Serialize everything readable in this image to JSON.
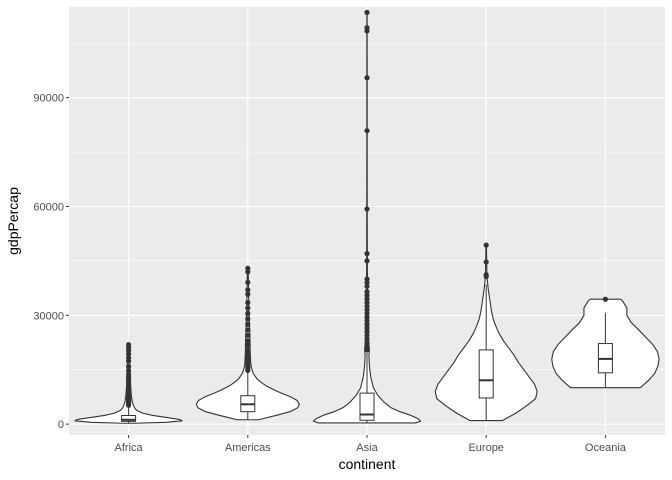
{
  "chart_data": {
    "type": "violin",
    "title": "",
    "xlabel": "continent",
    "ylabel": "gdpPercap",
    "ylim": [
      -3000,
      115000
    ],
    "y_ticks": [
      0,
      30000,
      60000,
      90000
    ],
    "y_tick_labels": [
      "0",
      "30000",
      "60000",
      "90000"
    ],
    "categories": [
      "Africa",
      "Americas",
      "Asia",
      "Europe",
      "Oceania"
    ],
    "grid": true,
    "legend": "none",
    "colors": {
      "panel": "#ebebeb",
      "grid_major": "#ffffff",
      "violin_fill": "#ffffff",
      "outline": "#333333",
      "outlier": "#333333",
      "tick": "#333333"
    },
    "groups": [
      {
        "name": "Africa",
        "box": {
          "whisker_low": 241,
          "q1": 762,
          "median": 1192,
          "q3": 2377,
          "whisker_high": 4800
        },
        "outliers": [
          5200,
          5500,
          5900,
          6200,
          6600,
          7000,
          7400,
          7800,
          8200,
          8700,
          9300,
          9900,
          10600,
          11400,
          12200,
          12900,
          13700,
          14700,
          15900,
          17400,
          18300,
          19300,
          20300,
          21200,
          21900
        ],
        "violin": [
          [
            241,
            0.1
          ],
          [
            500,
            0.7
          ],
          [
            900,
            1.0
          ],
          [
            1300,
            0.95
          ],
          [
            1800,
            0.72
          ],
          [
            2400,
            0.45
          ],
          [
            3000,
            0.27
          ],
          [
            3800,
            0.15
          ],
          [
            4500,
            0.11
          ],
          [
            6000,
            0.07
          ],
          [
            8000,
            0.05
          ],
          [
            10000,
            0.04
          ],
          [
            13000,
            0.03
          ],
          [
            16000,
            0.025
          ],
          [
            19000,
            0.02
          ],
          [
            21951,
            0.015
          ]
        ]
      },
      {
        "name": "Americas",
        "box": {
          "whisker_low": 1202,
          "q1": 3428,
          "median": 5466,
          "q3": 7830,
          "whisker_high": 14300
        },
        "outliers": [
          14800,
          15300,
          15800,
          16300,
          16800,
          17300,
          17800,
          18300,
          18800,
          19500,
          20500,
          21800,
          23000,
          24500,
          26000,
          27500,
          29000,
          30500,
          32000,
          33500,
          35800,
          37000,
          39100,
          42000,
          42952
        ],
        "violin": [
          [
            1202,
            0.2
          ],
          [
            2500,
            0.55
          ],
          [
            3500,
            0.8
          ],
          [
            4500,
            0.93
          ],
          [
            5500,
            0.96
          ],
          [
            6500,
            0.92
          ],
          [
            7500,
            0.8
          ],
          [
            8500,
            0.63
          ],
          [
            9500,
            0.48
          ],
          [
            10500,
            0.35
          ],
          [
            11500,
            0.25
          ],
          [
            12500,
            0.17
          ],
          [
            14000,
            0.1
          ],
          [
            16000,
            0.06
          ],
          [
            18000,
            0.05
          ],
          [
            20000,
            0.045
          ],
          [
            24000,
            0.04
          ],
          [
            28000,
            0.03
          ],
          [
            32000,
            0.02
          ],
          [
            36000,
            0.015
          ],
          [
            40000,
            0.01
          ],
          [
            42952,
            0.008
          ]
        ]
      },
      {
        "name": "Asia",
        "box": {
          "whisker_low": 331,
          "q1": 1057,
          "median": 2647,
          "q3": 8549,
          "whisker_high": 19800
        },
        "outliers": [
          20500,
          21500,
          22500,
          23500,
          24500,
          25500,
          26500,
          27500,
          28500,
          29500,
          30500,
          31500,
          32500,
          33500,
          34500,
          35500,
          36500,
          38000,
          39000,
          40000,
          45000,
          47000,
          59300,
          80900,
          95500,
          108400,
          109300,
          113523
        ],
        "violin": [
          [
            331,
            0.9
          ],
          [
            800,
            1.0
          ],
          [
            1500,
            0.95
          ],
          [
            2500,
            0.8
          ],
          [
            3500,
            0.6
          ],
          [
            4500,
            0.45
          ],
          [
            6000,
            0.32
          ],
          [
            8000,
            0.2
          ],
          [
            10000,
            0.12
          ],
          [
            13000,
            0.07
          ],
          [
            16000,
            0.045
          ],
          [
            19000,
            0.035
          ],
          [
            20500,
            0.045
          ],
          [
            22000,
            0.035
          ],
          [
            26000,
            0.02
          ],
          [
            30000,
            0.015
          ],
          [
            36000,
            0.01
          ],
          [
            45000,
            0.006
          ],
          [
            60000,
            0.004
          ],
          [
            80000,
            0.003
          ],
          [
            100000,
            0.003
          ],
          [
            113523,
            0.002
          ]
        ]
      },
      {
        "name": "Europe",
        "box": {
          "whisker_low": 974,
          "q1": 7213,
          "median": 12082,
          "q3": 20461,
          "whisker_high": 38500
        },
        "outliers": [
          40700,
          41200,
          44700,
          49357
        ],
        "violin": [
          [
            974,
            0.3
          ],
          [
            3000,
            0.55
          ],
          [
            5000,
            0.75
          ],
          [
            7000,
            0.92
          ],
          [
            9000,
            0.95
          ],
          [
            11000,
            0.9
          ],
          [
            13000,
            0.8
          ],
          [
            15000,
            0.7
          ],
          [
            17000,
            0.6
          ],
          [
            19000,
            0.52
          ],
          [
            21000,
            0.42
          ],
          [
            23000,
            0.32
          ],
          [
            25000,
            0.24
          ],
          [
            27000,
            0.18
          ],
          [
            29000,
            0.13
          ],
          [
            31000,
            0.1
          ],
          [
            33000,
            0.08
          ],
          [
            35000,
            0.06
          ],
          [
            37000,
            0.04
          ],
          [
            39000,
            0.025
          ],
          [
            41000,
            0.015
          ],
          [
            45000,
            0.008
          ],
          [
            49357,
            0.005
          ]
        ]
      },
      {
        "name": "Oceania",
        "box": {
          "whisker_low": 10040,
          "q1": 14142,
          "median": 17983,
          "q3": 22214,
          "whisker_high": 30700
        },
        "outliers": [
          34435
        ],
        "violin": [
          [
            10040,
            0.65
          ],
          [
            12000,
            0.8
          ],
          [
            14000,
            0.92
          ],
          [
            16000,
            0.98
          ],
          [
            18000,
            1.0
          ],
          [
            20000,
            0.97
          ],
          [
            22000,
            0.88
          ],
          [
            24000,
            0.75
          ],
          [
            26000,
            0.62
          ],
          [
            28000,
            0.48
          ],
          [
            30000,
            0.4
          ],
          [
            32000,
            0.4
          ],
          [
            34000,
            0.32
          ],
          [
            34435,
            0.28
          ]
        ]
      }
    ]
  }
}
